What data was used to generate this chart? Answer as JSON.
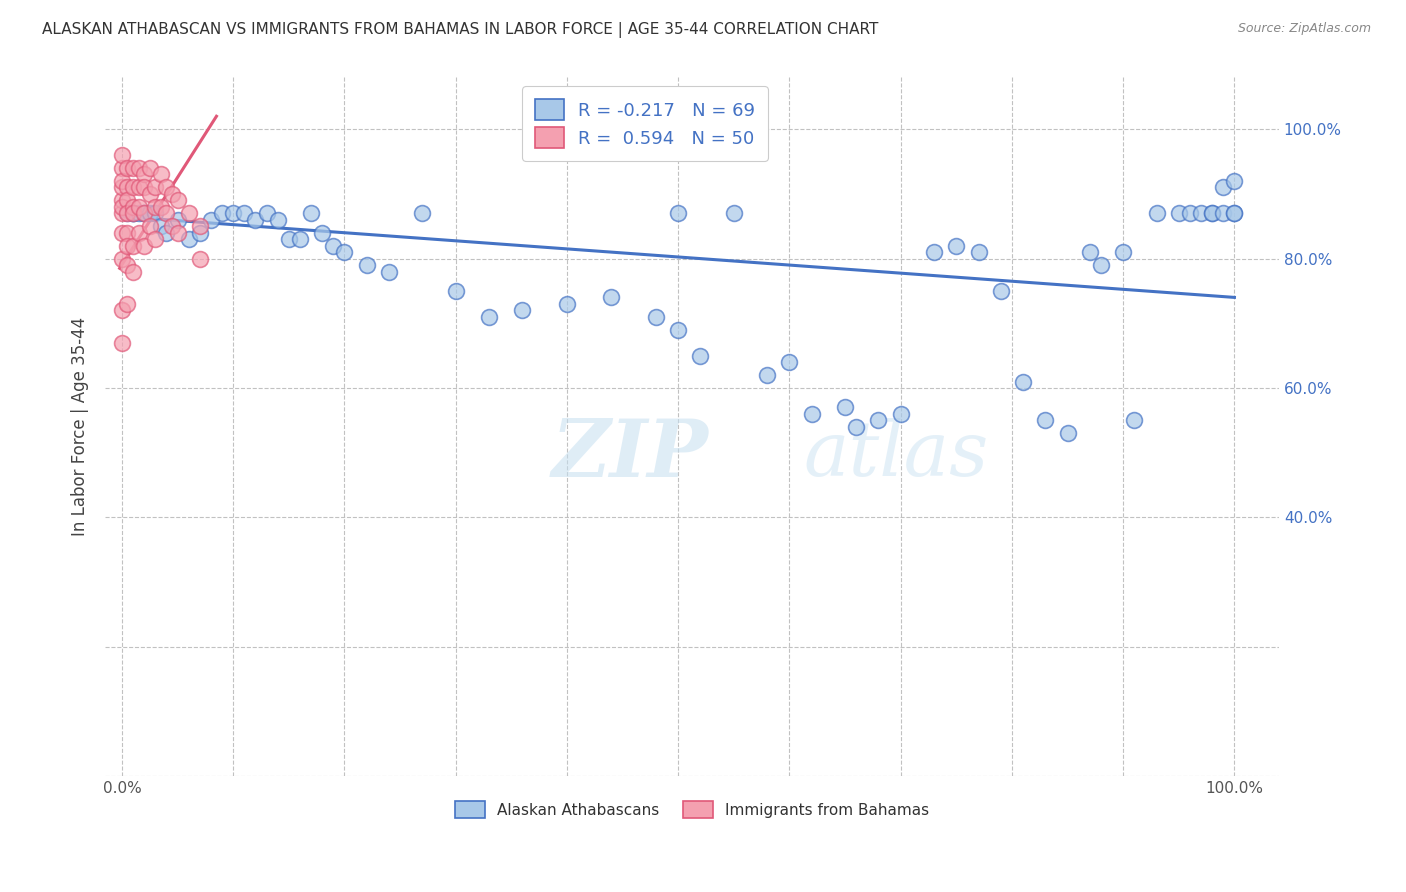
{
  "title": "ALASKAN ATHABASCAN VS IMMIGRANTS FROM BAHAMAS IN LABOR FORCE | AGE 35-44 CORRELATION CHART",
  "source": "Source: ZipAtlas.com",
  "ylabel": "In Labor Force | Age 35-44",
  "blue_color": "#a8c8e8",
  "pink_color": "#f4a0b0",
  "line_blue": "#4472c4",
  "line_pink": "#e05878",
  "watermark_zip": "ZIP",
  "watermark_atlas": "atlas",
  "blue_scatter_x": [
    0.005,
    0.01,
    0.01,
    0.01,
    0.015,
    0.02,
    0.02,
    0.025,
    0.03,
    0.035,
    0.04,
    0.05,
    0.06,
    0.07,
    0.08,
    0.09,
    0.1,
    0.11,
    0.12,
    0.13,
    0.14,
    0.15,
    0.16,
    0.17,
    0.18,
    0.19,
    0.2,
    0.22,
    0.24,
    0.27,
    0.3,
    0.33,
    0.36,
    0.4,
    0.44,
    0.48,
    0.5,
    0.5,
    0.52,
    0.55,
    0.58,
    0.6,
    0.62,
    0.65,
    0.66,
    0.68,
    0.7,
    0.73,
    0.75,
    0.77,
    0.79,
    0.81,
    0.83,
    0.85,
    0.87,
    0.88,
    0.9,
    0.91,
    0.93,
    0.95,
    0.96,
    0.97,
    0.98,
    0.98,
    0.99,
    0.99,
    1.0,
    1.0,
    1.0
  ],
  "blue_scatter_y": [
    0.87,
    0.87,
    0.87,
    0.87,
    0.87,
    0.87,
    0.87,
    0.87,
    0.87,
    0.85,
    0.84,
    0.86,
    0.83,
    0.84,
    0.86,
    0.87,
    0.87,
    0.87,
    0.86,
    0.87,
    0.86,
    0.83,
    0.83,
    0.87,
    0.84,
    0.82,
    0.81,
    0.79,
    0.78,
    0.87,
    0.75,
    0.71,
    0.72,
    0.73,
    0.74,
    0.71,
    0.87,
    0.69,
    0.65,
    0.87,
    0.62,
    0.64,
    0.56,
    0.57,
    0.54,
    0.55,
    0.56,
    0.81,
    0.82,
    0.81,
    0.75,
    0.61,
    0.55,
    0.53,
    0.81,
    0.79,
    0.81,
    0.55,
    0.87,
    0.87,
    0.87,
    0.87,
    0.87,
    0.87,
    0.87,
    0.91,
    0.87,
    0.87,
    0.92
  ],
  "pink_scatter_x": [
    0.0,
    0.0,
    0.0,
    0.0,
    0.0,
    0.0,
    0.0,
    0.0,
    0.0,
    0.0,
    0.005,
    0.005,
    0.005,
    0.005,
    0.005,
    0.005,
    0.005,
    0.005,
    0.01,
    0.01,
    0.01,
    0.01,
    0.01,
    0.01,
    0.015,
    0.015,
    0.015,
    0.015,
    0.02,
    0.02,
    0.02,
    0.02,
    0.025,
    0.025,
    0.025,
    0.03,
    0.03,
    0.03,
    0.035,
    0.035,
    0.04,
    0.04,
    0.045,
    0.045,
    0.05,
    0.05,
    0.06,
    0.07,
    0.07,
    0.0
  ],
  "pink_scatter_y": [
    0.87,
    0.89,
    0.91,
    0.94,
    0.96,
    0.92,
    0.88,
    0.84,
    0.8,
    0.72,
    0.94,
    0.91,
    0.89,
    0.87,
    0.84,
    0.82,
    0.79,
    0.73,
    0.94,
    0.91,
    0.88,
    0.87,
    0.82,
    0.78,
    0.94,
    0.91,
    0.88,
    0.84,
    0.93,
    0.91,
    0.87,
    0.82,
    0.94,
    0.9,
    0.85,
    0.91,
    0.88,
    0.83,
    0.93,
    0.88,
    0.91,
    0.87,
    0.9,
    0.85,
    0.89,
    0.84,
    0.87,
    0.85,
    0.8,
    0.67
  ]
}
